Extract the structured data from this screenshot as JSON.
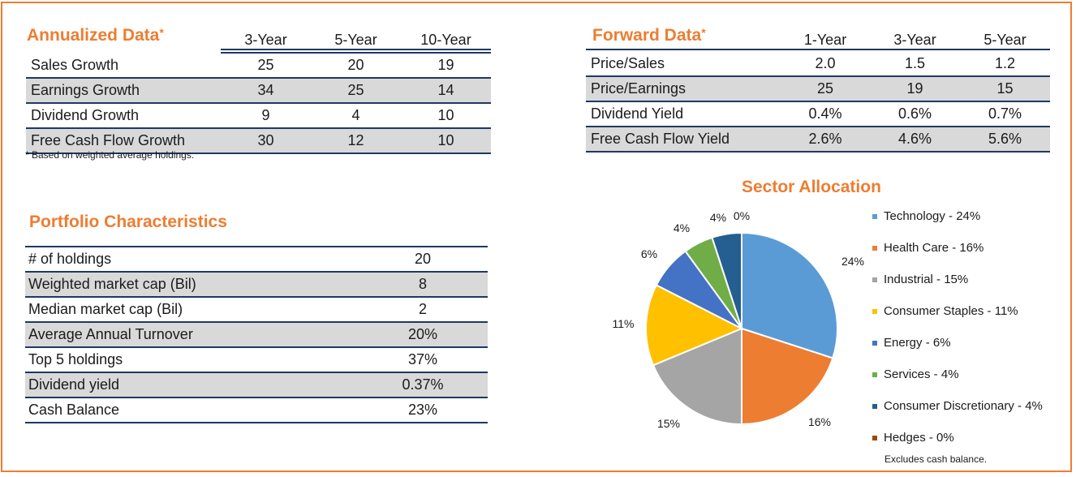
{
  "annualized": {
    "title": "Annualized Data",
    "star": "*",
    "headers": [
      "3-Year",
      "5-Year",
      "10-Year"
    ],
    "rows": [
      {
        "label": "Sales Growth",
        "values": [
          "25",
          "20",
          "19"
        ]
      },
      {
        "label": "Earnings Growth",
        "values": [
          "34",
          "25",
          "14"
        ]
      },
      {
        "label": "Dividend Growth",
        "values": [
          "9",
          "4",
          "10"
        ]
      },
      {
        "label": "Free Cash Flow Growth",
        "values": [
          "30",
          "12",
          "10"
        ]
      }
    ],
    "footnote": "* Based on weighted average holdings."
  },
  "forward": {
    "title": "Forward Data",
    "star": "*",
    "headers": [
      "1-Year",
      "3-Year",
      "5-Year"
    ],
    "rows": [
      {
        "label": "Price/Sales",
        "values": [
          "2.0",
          "1.5",
          "1.2"
        ]
      },
      {
        "label": "Price/Earnings",
        "values": [
          "25",
          "19",
          "15"
        ]
      },
      {
        "label": "Dividend Yield",
        "values": [
          "0.4%",
          "0.6%",
          "0.7%"
        ]
      },
      {
        "label": "Free Cash Flow Yield",
        "values": [
          "2.6%",
          "4.6%",
          "5.6%"
        ]
      }
    ]
  },
  "portfolio": {
    "title": "Portfolio Characteristics",
    "rows": [
      {
        "label": "# of holdings",
        "value": "20"
      },
      {
        "label": "Weighted market cap (Bil)",
        "value": "8"
      },
      {
        "label": "Median market cap (Bil)",
        "value": "2"
      },
      {
        "label": "Average Annual Turnover",
        "value": "20%"
      },
      {
        "label": "Top 5 holdings",
        "value": "37%"
      },
      {
        "label": "Dividend yield",
        "value": "0.37%"
      },
      {
        "label": "Cash Balance",
        "value": "23%"
      }
    ]
  },
  "chart_data": {
    "type": "pie",
    "title": "Sector Allocation",
    "note": "Excludes cash balance.",
    "slices": [
      {
        "legend": "Technology - 24%",
        "value": 24,
        "label": "24%",
        "color": "#5b9bd5"
      },
      {
        "legend": "Health Care - 16%",
        "value": 16,
        "label": "16%",
        "color": "#ed7d31"
      },
      {
        "legend": "Industrial - 15%",
        "value": 15,
        "label": "15%",
        "color": "#a5a5a5"
      },
      {
        "legend": "Consumer Staples - 11%",
        "value": 11,
        "label": "11%",
        "color": "#ffc000"
      },
      {
        "legend": "Energy - 6%",
        "value": 6,
        "label": "6%",
        "color": "#4472c4"
      },
      {
        "legend": "Services - 4%",
        "value": 4,
        "label": "4%",
        "color": "#70ad47"
      },
      {
        "legend": "Consumer Discretionary - 4%",
        "value": 4,
        "label": "4%",
        "color": "#255e91"
      },
      {
        "legend": "Hedges - 0%",
        "value": 0,
        "label": "0%",
        "color": "#9e480e"
      }
    ]
  },
  "colors": {
    "accent": "#ed7d31",
    "rule": "#1f3864",
    "shade": "#d9d9d9"
  }
}
